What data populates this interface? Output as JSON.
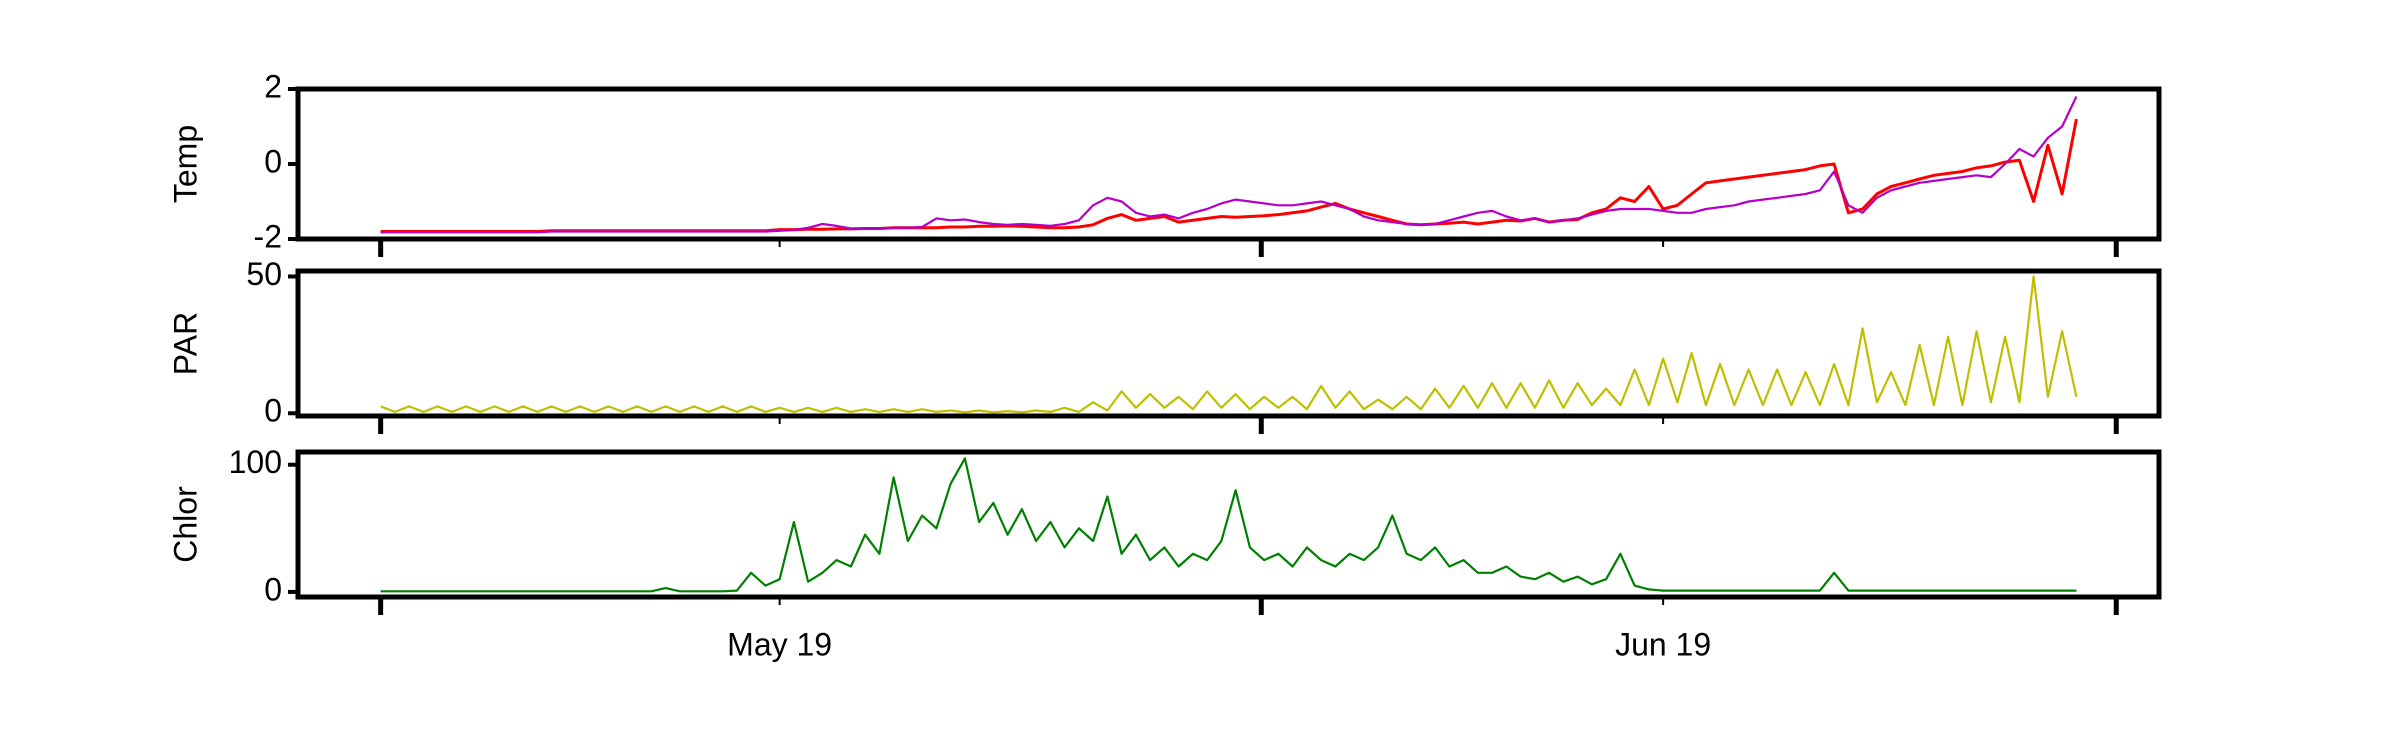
{
  "chart_data": [
    {
      "type": "line",
      "ylabel": "Temp",
      "xlim": [
        -16.9,
        48.4
      ],
      "ylim": [
        -2,
        2
      ],
      "yticks": [
        -2,
        0,
        2
      ],
      "x": [
        -14,
        -13.5,
        -13,
        -12.5,
        -12,
        -11.5,
        -11,
        -10.5,
        -10,
        -9.5,
        -9,
        -8.5,
        -8,
        -7.5,
        -7,
        -6.5,
        -6,
        -5.5,
        -5,
        -4.5,
        -4,
        -3.5,
        -3,
        -2.5,
        -2,
        -1.5,
        -1,
        -0.5,
        0,
        0.5,
        1,
        1.5,
        2,
        2.5,
        3,
        3.5,
        4,
        4.5,
        5,
        5.5,
        6,
        6.5,
        7,
        7.5,
        8,
        8.5,
        9,
        9.5,
        10,
        10.5,
        11,
        11.5,
        12,
        12.5,
        13,
        13.5,
        14,
        14.5,
        15,
        15.5,
        16,
        16.5,
        17,
        17.5,
        18,
        18.5,
        19,
        19.5,
        20,
        20.5,
        21,
        21.5,
        22,
        22.5,
        23,
        23.5,
        24,
        24.5,
        25,
        25.5,
        26,
        26.5,
        27,
        27.5,
        28,
        28.5,
        29,
        29.5,
        30,
        30.5,
        31,
        31.5,
        32,
        32.5,
        33,
        33.5,
        34,
        34.5,
        35,
        35.5,
        36,
        36.5,
        37,
        37.5,
        38,
        38.5,
        39,
        39.5,
        40,
        40.5,
        41,
        41.5,
        42,
        42.5,
        43,
        43.5,
        44,
        44.5,
        45,
        45.5
      ],
      "series": [
        {
          "color": "#ff0000",
          "values": [
            -1.8,
            -1.8,
            -1.8,
            -1.8,
            -1.8,
            -1.8,
            -1.8,
            -1.8,
            -1.8,
            -1.8,
            -1.8,
            -1.8,
            -1.78,
            -1.78,
            -1.78,
            -1.78,
            -1.78,
            -1.78,
            -1.78,
            -1.78,
            -1.78,
            -1.78,
            -1.78,
            -1.78,
            -1.78,
            -1.78,
            -1.78,
            -1.78,
            -1.75,
            -1.75,
            -1.74,
            -1.74,
            -1.73,
            -1.73,
            -1.72,
            -1.72,
            -1.7,
            -1.7,
            -1.7,
            -1.7,
            -1.68,
            -1.68,
            -1.66,
            -1.66,
            -1.65,
            -1.66,
            -1.68,
            -1.7,
            -1.7,
            -1.68,
            -1.62,
            -1.45,
            -1.35,
            -1.5,
            -1.45,
            -1.4,
            -1.55,
            -1.5,
            -1.45,
            -1.4,
            -1.42,
            -1.4,
            -1.38,
            -1.35,
            -1.3,
            -1.25,
            -1.15,
            -1.05,
            -1.2,
            -1.3,
            -1.4,
            -1.5,
            -1.6,
            -1.62,
            -1.6,
            -1.58,
            -1.55,
            -1.6,
            -1.55,
            -1.5,
            -1.52,
            -1.45,
            -1.55,
            -1.5,
            -1.48,
            -1.3,
            -1.2,
            -0.9,
            -1.0,
            -0.6,
            -1.2,
            -1.1,
            -0.8,
            -0.5,
            -0.45,
            -0.4,
            -0.35,
            -0.3,
            -0.25,
            -0.2,
            -0.15,
            -0.05,
            0.0,
            -1.3,
            -1.2,
            -0.8,
            -0.6,
            -0.5,
            -0.4,
            -0.3,
            -0.25,
            -0.2,
            -0.1,
            -0.05,
            0.05,
            0.1,
            -1.0,
            0.5,
            -0.8,
            1.2
          ]
        },
        {
          "color": "#b400c8",
          "values": [
            -1.82,
            -1.82,
            -1.82,
            -1.82,
            -1.82,
            -1.82,
            -1.82,
            -1.82,
            -1.82,
            -1.82,
            -1.82,
            -1.82,
            -1.8,
            -1.8,
            -1.8,
            -1.8,
            -1.8,
            -1.8,
            -1.8,
            -1.8,
            -1.8,
            -1.8,
            -1.8,
            -1.8,
            -1.8,
            -1.8,
            -1.8,
            -1.8,
            -1.78,
            -1.76,
            -1.7,
            -1.6,
            -1.65,
            -1.72,
            -1.72,
            -1.72,
            -1.7,
            -1.7,
            -1.68,
            -1.45,
            -1.5,
            -1.48,
            -1.55,
            -1.6,
            -1.62,
            -1.6,
            -1.62,
            -1.65,
            -1.6,
            -1.5,
            -1.1,
            -0.9,
            -1.0,
            -1.3,
            -1.4,
            -1.35,
            -1.45,
            -1.3,
            -1.2,
            -1.05,
            -0.95,
            -1.0,
            -1.05,
            -1.1,
            -1.1,
            -1.05,
            -1.0,
            -1.1,
            -1.2,
            -1.4,
            -1.5,
            -1.55,
            -1.6,
            -1.62,
            -1.6,
            -1.5,
            -1.4,
            -1.3,
            -1.25,
            -1.4,
            -1.5,
            -1.45,
            -1.55,
            -1.5,
            -1.45,
            -1.35,
            -1.25,
            -1.2,
            -1.2,
            -1.2,
            -1.25,
            -1.3,
            -1.3,
            -1.2,
            -1.15,
            -1.1,
            -1.0,
            -0.95,
            -0.9,
            -0.85,
            -0.8,
            -0.7,
            -0.2,
            -1.1,
            -1.3,
            -0.9,
            -0.7,
            -0.6,
            -0.5,
            -0.45,
            -0.4,
            -0.35,
            -0.3,
            -0.35,
            0.0,
            0.4,
            0.2,
            0.7,
            1.0,
            1.8
          ]
        }
      ]
    },
    {
      "type": "line",
      "ylabel": "PAR",
      "xlim": [
        -16.9,
        48.4
      ],
      "ylim": [
        -1,
        52
      ],
      "yticks": [
        0,
        50
      ],
      "x": [
        -14,
        -13.5,
        -13,
        -12.5,
        -12,
        -11.5,
        -11,
        -10.5,
        -10,
        -9.5,
        -9,
        -8.5,
        -8,
        -7.5,
        -7,
        -6.5,
        -6,
        -5.5,
        -5,
        -4.5,
        -4,
        -3.5,
        -3,
        -2.5,
        -2,
        -1.5,
        -1,
        -0.5,
        0,
        0.5,
        1,
        1.5,
        2,
        2.5,
        3,
        3.5,
        4,
        4.5,
        5,
        5.5,
        6,
        6.5,
        7,
        7.5,
        8,
        8.5,
        9,
        9.5,
        10,
        10.5,
        11,
        11.5,
        12,
        12.5,
        13,
        13.5,
        14,
        14.5,
        15,
        15.5,
        16,
        16.5,
        17,
        17.5,
        18,
        18.5,
        19,
        19.5,
        20,
        20.5,
        21,
        21.5,
        22,
        22.5,
        23,
        23.5,
        24,
        24.5,
        25,
        25.5,
        26,
        26.5,
        27,
        27.5,
        28,
        28.5,
        29,
        29.5,
        30,
        30.5,
        31,
        31.5,
        32,
        32.5,
        33,
        33.5,
        34,
        34.5,
        35,
        35.5,
        36,
        36.5,
        37,
        37.5,
        38,
        38.5,
        39,
        39.5,
        40,
        40.5,
        41,
        41.5,
        42,
        42.5,
        43,
        43.5,
        44,
        44.5,
        45,
        45.5
      ],
      "series": [
        {
          "color": "#bfbf00",
          "values": [
            2.5,
            0.5,
            2.5,
            0.5,
            2.5,
            0.5,
            2.5,
            0.5,
            2.5,
            0.5,
            2.5,
            0.5,
            2.5,
            0.5,
            2.5,
            0.5,
            2.5,
            0.5,
            2.5,
            0.5,
            2.5,
            0.5,
            2.5,
            0.5,
            2.5,
            0.5,
            2.5,
            0.5,
            2,
            0.5,
            2,
            0.5,
            2,
            0.5,
            1.5,
            0.5,
            1.5,
            0.5,
            1.5,
            0.5,
            1,
            0.3,
            1,
            0.3,
            0.8,
            0.3,
            1,
            0.5,
            2,
            0.5,
            4,
            1,
            8,
            2,
            7,
            2,
            6,
            1.5,
            8,
            2,
            7,
            1.5,
            6,
            2,
            6,
            1.5,
            10,
            2,
            8,
            1.5,
            5,
            1.5,
            6,
            1.5,
            9,
            2,
            10,
            2,
            11,
            2,
            11,
            2,
            12,
            2,
            11,
            3,
            9,
            3,
            16,
            3,
            20,
            4,
            22,
            3,
            18,
            3,
            16,
            3,
            16,
            3,
            15,
            3,
            18,
            3,
            31,
            4,
            15,
            3,
            25,
            3,
            28,
            3,
            30,
            4,
            28,
            4,
            50,
            6,
            30,
            6
          ]
        }
      ]
    },
    {
      "type": "line",
      "ylabel": "Chlor",
      "xlim": [
        -16.9,
        48.4
      ],
      "ylim": [
        -4,
        110
      ],
      "yticks": [
        0,
        100
      ],
      "xticks": [
        {
          "value": 0,
          "label": "May 19"
        },
        {
          "value": 31,
          "label": "Jun 19"
        }
      ],
      "x_unlabeled_ticks": [
        -14,
        16.9,
        46.9
      ],
      "x": [
        -14,
        -13.5,
        -13,
        -12.5,
        -12,
        -11.5,
        -11,
        -10.5,
        -10,
        -9.5,
        -9,
        -8.5,
        -8,
        -7.5,
        -7,
        -6.5,
        -6,
        -5.5,
        -5,
        -4.5,
        -4,
        -3.5,
        -3,
        -2.5,
        -2,
        -1.5,
        -1,
        -0.5,
        0,
        0.5,
        1,
        1.5,
        2,
        2.5,
        3,
        3.5,
        4,
        4.5,
        5,
        5.5,
        6,
        6.5,
        7,
        7.5,
        8,
        8.5,
        9,
        9.5,
        10,
        10.5,
        11,
        11.5,
        12,
        12.5,
        13,
        13.5,
        14,
        14.5,
        15,
        15.5,
        16,
        16.5,
        17,
        17.5,
        18,
        18.5,
        19,
        19.5,
        20,
        20.5,
        21,
        21.5,
        22,
        22.5,
        23,
        23.5,
        24,
        24.5,
        25,
        25.5,
        26,
        26.5,
        27,
        27.5,
        28,
        28.5,
        29,
        29.5,
        30,
        30.5,
        31,
        31.5,
        32,
        32.5,
        33,
        33.5,
        34,
        34.5,
        35,
        35.5,
        36,
        36.5,
        37,
        37.5,
        38,
        38.5,
        39,
        39.5,
        40,
        40.5,
        41,
        41.5,
        42,
        42.5,
        43,
        43.5,
        44,
        44.5,
        45,
        45.5
      ],
      "series": [
        {
          "color": "#008000",
          "values": [
            0.5,
            0.5,
            0.5,
            0.5,
            0.5,
            0.5,
            0.5,
            0.5,
            0.5,
            0.5,
            0.5,
            0.5,
            0.5,
            0.5,
            0.5,
            0.5,
            0.5,
            0.5,
            0.5,
            0.5,
            3,
            0.5,
            0.5,
            0.5,
            0.5,
            1,
            15,
            5,
            10,
            55,
            8,
            15,
            25,
            20,
            45,
            30,
            90,
            40,
            60,
            50,
            85,
            105,
            55,
            70,
            45,
            65,
            40,
            55,
            35,
            50,
            40,
            75,
            30,
            45,
            25,
            35,
            20,
            30,
            25,
            40,
            80,
            35,
            25,
            30,
            20,
            35,
            25,
            20,
            30,
            25,
            35,
            60,
            30,
            25,
            35,
            20,
            25,
            15,
            15,
            20,
            12,
            10,
            15,
            8,
            12,
            6,
            10,
            30,
            5,
            2,
            1,
            1,
            1,
            1,
            1,
            1,
            1,
            1,
            1,
            1,
            1,
            1,
            15,
            1,
            1,
            1,
            1,
            1,
            1,
            1,
            1,
            1,
            1,
            1,
            1,
            1,
            1,
            1,
            1,
            1
          ]
        }
      ]
    }
  ]
}
